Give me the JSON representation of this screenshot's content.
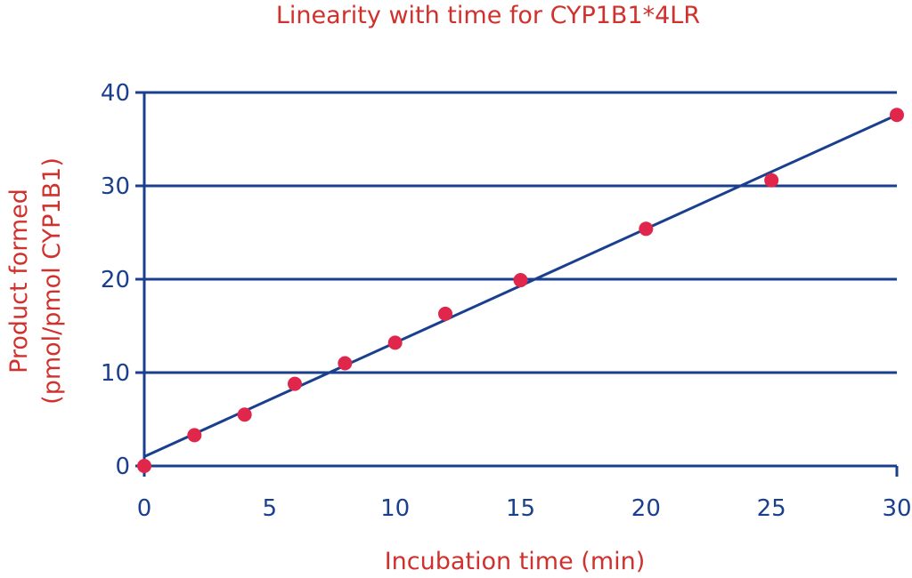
{
  "chart_data": {
    "type": "scatter",
    "title": "Linearity with time for CYP1B1*4LR",
    "xlabel": "Incubation time (min)",
    "ylabel_line1": "Product formed",
    "ylabel_line2": "(pmol/pmol CYP1B1)",
    "xlim": [
      0,
      30
    ],
    "ylim": [
      0,
      40
    ],
    "xticks": [
      0,
      5,
      10,
      15,
      20,
      25,
      30
    ],
    "yticks": [
      0,
      10,
      20,
      30,
      40
    ],
    "grid": "horizontal",
    "series": [
      {
        "x": [
          0,
          2,
          4,
          6,
          8,
          10,
          12,
          15,
          20,
          25,
          30
        ],
        "y": [
          0,
          3.3,
          5.5,
          8.8,
          11.0,
          13.2,
          16.3,
          19.9,
          25.4,
          30.6,
          37.6
        ]
      }
    ],
    "fit_line": {
      "x": [
        0,
        30
      ],
      "y": [
        1.0,
        37.6
      ]
    },
    "colors": {
      "axis": "#1a3f8f",
      "points": "#e0264a",
      "text": "#d0312d"
    }
  }
}
